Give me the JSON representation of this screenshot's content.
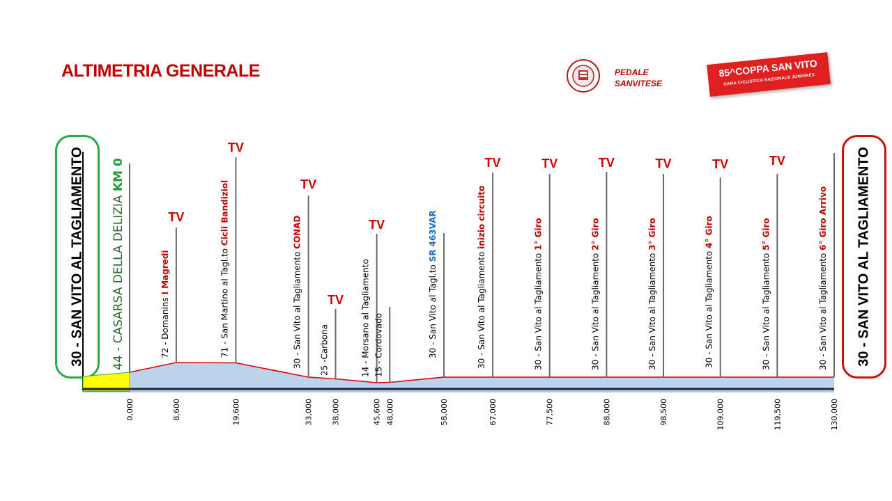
{
  "title": "ALTIMETRIA GENERALE",
  "logo": {
    "line1": "PEDALE",
    "line2": "SANVITESE",
    "seal_text": "PEDALE SANVITESE"
  },
  "banner": {
    "main": "85^COPPA SAN VITO",
    "sub": "GARA CICLISTICA NAZIONALE JUNIORES"
  },
  "start_label": "30 - SAN VITO AL TAGLIAMENTO",
  "finish_label": "30 - SAN VITO AL TAGLIAMENTO",
  "casarsa": {
    "prefix": "44 - CASARSA DELLA DELIZIA ",
    "highlight": "KM 0"
  },
  "tv_label": "TV",
  "colors": {
    "title": "#c00000",
    "profile_line": "#e00000",
    "profile_fill": "#bcd3ec",
    "neutral_fill": "#ffff00",
    "start_border": "#2aa84a",
    "finish_border": "#cc1010",
    "km_zero": "#17a03a",
    "sr_highlight": "#1f6fbf"
  },
  "chart_data": {
    "type": "area",
    "title": "ALTIMETRIA GENERALE",
    "xlabel": "",
    "ylabel": "",
    "x_unit": "km",
    "x_tick_labels": [
      "0,000",
      "8,600",
      "19,600",
      "33,000",
      "38,000",
      "45,600",
      "48,000",
      "58,000",
      "67,000",
      "77,500",
      "88,000",
      "98,500",
      "109,000",
      "119,500",
      "130,000"
    ],
    "x": [
      0,
      8.6,
      19.6,
      33.0,
      38.0,
      45.6,
      48.0,
      58.0,
      67.0,
      77.5,
      88.0,
      98.5,
      109.0,
      119.5,
      130.0
    ],
    "altitude_m": [
      44,
      72,
      71,
      30,
      25,
      14,
      15,
      30,
      30,
      30,
      30,
      30,
      30,
      30,
      30
    ],
    "neutral_section": {
      "from": "30 - SAN VITO AL TAGLIAMENTO",
      "to": "44 - CASARSA DELLA DELIZIA"
    },
    "points": [
      {
        "km": "0,000",
        "label_prefix": "44 - CASARSA DELLA DELIZIA ",
        "label_highlight": "KM 0",
        "tv": false
      },
      {
        "km": "8,600",
        "label_prefix": "72 - Domanins ",
        "label_highlight": "I Magredi",
        "highlight_color": "red",
        "tv": true
      },
      {
        "km": "19,600",
        "label_prefix": "71 - San Martino  al Tagl.to ",
        "label_highlight": "Cicli Bandiziol",
        "highlight_color": "red",
        "tv": true
      },
      {
        "km": "33,000",
        "label_prefix": "30 - San Vito al Tagliamento ",
        "label_highlight": "CONAD",
        "highlight_color": "red",
        "tv": true
      },
      {
        "km": "38,000",
        "label_prefix": "25 -Carbona",
        "label_highlight": "",
        "tv": true
      },
      {
        "km": "45,600",
        "label_prefix": "14 - Morsano al Tagliamento",
        "label_highlight": "",
        "tv": true
      },
      {
        "km": "48,000",
        "label_prefix": "15 - Cordovado",
        "label_highlight": "",
        "tv": false
      },
      {
        "km": "58,000",
        "label_prefix": "30 - San Vito al Tagl.to ",
        "label_highlight": "SR 463VAR",
        "highlight_color": "blue",
        "tv": false
      },
      {
        "km": "67,000",
        "label_prefix": "30 - San Vito al Tagliamento ",
        "label_highlight": "inizio circuito",
        "highlight_color": "red",
        "tv": true
      },
      {
        "km": "77,500",
        "label_prefix": "30 - San Vito al Tagliamento ",
        "label_highlight": "1° Giro",
        "highlight_color": "red",
        "tv": true
      },
      {
        "km": "88,000",
        "label_prefix": "30 - San Vito al Tagliamento ",
        "label_highlight": "2° Giro",
        "highlight_color": "red",
        "tv": true
      },
      {
        "km": "98,500",
        "label_prefix": "30 - San Vito al Tagliamento ",
        "label_highlight": "3° Giro",
        "highlight_color": "red",
        "tv": true
      },
      {
        "km": "109,000",
        "label_prefix": "30 - San Vito al Tagliamento ",
        "label_highlight": "4° Giro",
        "highlight_color": "red",
        "tv": true
      },
      {
        "km": "119,500",
        "label_prefix": "30 - San Vito al Tagliamento ",
        "label_highlight": "5° Giro",
        "highlight_color": "red",
        "tv": true
      },
      {
        "km": "130,000",
        "label_prefix": "30 - San Vito al Tagliamento ",
        "label_highlight": "6° Giro Arrivo",
        "highlight_color": "red",
        "tv": false
      }
    ]
  }
}
